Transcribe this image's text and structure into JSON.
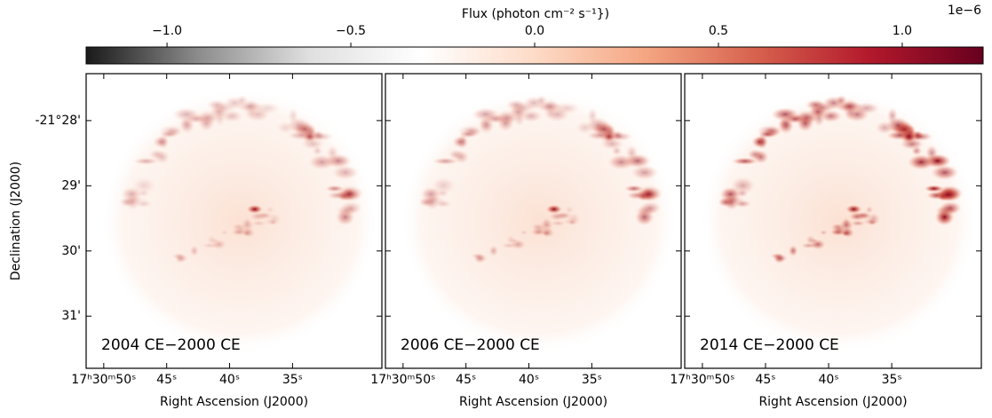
{
  "chart_data": {
    "type": "image",
    "colorbar": {
      "label": "Flux (photon cm⁻² s⁻¹})",
      "offset_label": "1e−6",
      "lim": [
        -1.22,
        1.22
      ],
      "ticks": [
        {
          "value": -1.0,
          "label": "−1.0"
        },
        {
          "value": -0.5,
          "label": "−0.5"
        },
        {
          "value": 0.0,
          "label": "0.0"
        },
        {
          "value": 0.5,
          "label": "0.5"
        },
        {
          "value": 1.0,
          "label": "1.0"
        }
      ],
      "colors": [
        "#1a1a1a",
        "#8c8c8c",
        "#e0e0e0",
        "#ffffff",
        "#fddbc7",
        "#f4a582",
        "#d6604d",
        "#b2182b",
        "#67001f"
      ]
    },
    "ylabel": "Declination (J2000)",
    "ylim": [
      31.8,
      27.28
    ],
    "yticks": [
      {
        "value": 28,
        "label": "-21°28'"
      },
      {
        "value": 29,
        "label": "29'"
      },
      {
        "value": 30,
        "label": "30'"
      },
      {
        "value": 31,
        "label": "31'"
      }
    ],
    "xlim": [
      51.4,
      27.9
    ],
    "panels": [
      {
        "label": "2004 CE−2000 CE",
        "xlabel": "Right Ascension (J2000)",
        "xticks": [
          {
            "value": 50,
            "label": "17ʰ30ᵐ50ˢ"
          },
          {
            "value": 45,
            "label": "45ˢ"
          },
          {
            "value": 40,
            "label": "40ˢ"
          },
          {
            "value": 35,
            "label": "35ˢ"
          }
        ]
      },
      {
        "label": "2006 CE−2000 CE",
        "xlabel": "Right Ascension (J2000)",
        "xticks": [
          {
            "value": 50,
            "label": "17ʰ30ᵐ50ˢ"
          },
          {
            "value": 45,
            "label": "45ˢ"
          },
          {
            "value": 40,
            "label": "40ˢ"
          },
          {
            "value": 35,
            "label": "35ˢ"
          }
        ]
      },
      {
        "label": "2014 CE−2000 CE",
        "xlabel": "Right Ascension (J2000)",
        "xticks": [
          {
            "value": 50,
            "label": "17ʰ30ᵐ50ˢ"
          },
          {
            "value": 45,
            "label": "45ˢ"
          },
          {
            "value": 40,
            "label": "40ˢ"
          },
          {
            "value": 35,
            "label": "35ˢ"
          }
        ]
      }
    ]
  }
}
